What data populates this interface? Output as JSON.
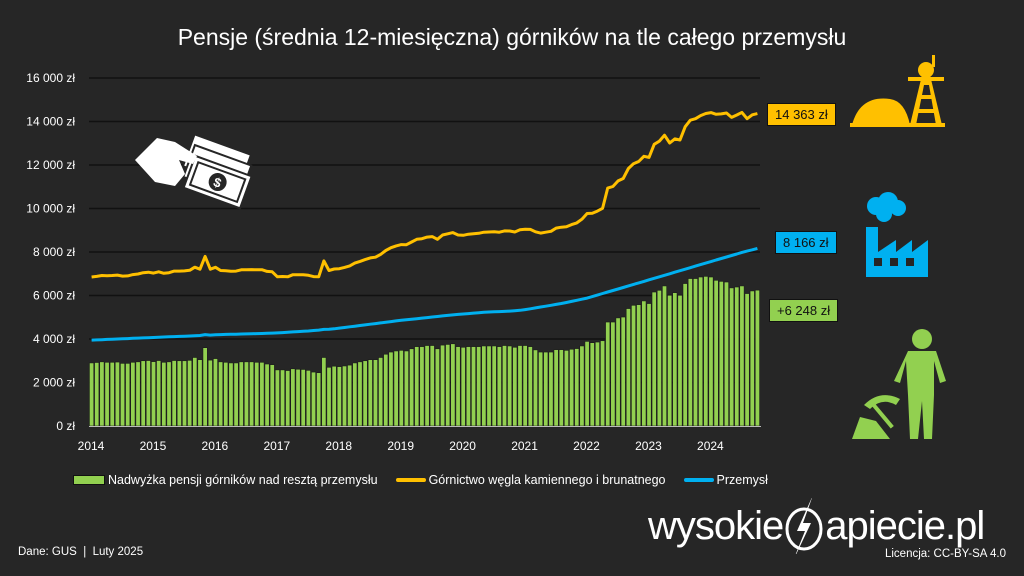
{
  "title": "Pensje (średnia 12-miesięczna) górników na tle całego przemysłu",
  "chart_data": {
    "type": "bar+line",
    "title": "Pensje (średnia 12-miesięczna) górników na tle całego przemysłu",
    "xlabel": "",
    "ylabel": "",
    "x_start": "2014-01",
    "x_end": "2024-10",
    "frequency": "monthly",
    "x_ticks": [
      "2014",
      "2015",
      "2016",
      "2017",
      "2018",
      "2019",
      "2020",
      "2021",
      "2022",
      "2023",
      "2024"
    ],
    "y_ticks": [
      "0 zł",
      "2 000 zł",
      "4 000 zł",
      "6 000 zł",
      "8 000 zł",
      "10 000 zł",
      "12 000 zł",
      "14 000 zł",
      "16 000 zł"
    ],
    "ylim": [
      0,
      16000
    ],
    "grid": "horizontal",
    "legend": "bottom",
    "series": [
      {
        "name": "Nadwyżka pensji górników nad resztą przemysłu",
        "type": "bar",
        "color": "#92D050",
        "values": [
          2900,
          2920,
          2950,
          2930,
          2930,
          2940,
          2880,
          2880,
          2930,
          2950,
          3000,
          3010,
          2960,
          3010,
          2930,
          2950,
          3010,
          3000,
          3000,
          3020,
          3150,
          3050,
          3600,
          3030,
          3100,
          2950,
          2930,
          2900,
          2900,
          2950,
          2950,
          2950,
          2930,
          2930,
          2850,
          2820,
          2580,
          2580,
          2550,
          2630,
          2610,
          2600,
          2560,
          2480,
          2450,
          3150,
          2700,
          2750,
          2730,
          2760,
          2800,
          2900,
          2950,
          3000,
          3050,
          3050,
          3150,
          3300,
          3400,
          3450,
          3480,
          3450,
          3550,
          3650,
          3650,
          3700,
          3700,
          3550,
          3720,
          3750,
          3780,
          3650,
          3620,
          3650,
          3650,
          3650,
          3680,
          3680,
          3680,
          3650,
          3700,
          3680,
          3620,
          3700,
          3700,
          3650,
          3500,
          3400,
          3400,
          3400,
          3510,
          3510,
          3480,
          3530,
          3560,
          3680,
          3890,
          3830,
          3860,
          3920,
          4780,
          4780,
          4970,
          5010,
          5400,
          5550,
          5580,
          5750,
          5630,
          6160,
          6240,
          6440,
          6010,
          6130,
          6010,
          6550,
          6780,
          6780,
          6850,
          6880,
          6850,
          6700,
          6650,
          6620,
          6350,
          6390,
          6440,
          6090,
          6210,
          6248
        ]
      },
      {
        "name": "Górnictwo węgla kamiennego i brunatnego",
        "type": "line",
        "color": "#FFC000",
        "values": [
          6850,
          6880,
          6920,
          6910,
          6920,
          6940,
          6890,
          6900,
          6960,
          6990,
          7050,
          7070,
          7030,
          7090,
          7020,
          7050,
          7120,
          7120,
          7130,
          7160,
          7300,
          7210,
          7800,
          7210,
          7295,
          7150,
          7140,
          7115,
          7120,
          7180,
          7185,
          7190,
          7180,
          7185,
          7110,
          7090,
          6860,
          6875,
          6860,
          6955,
          6950,
          6955,
          6930,
          6870,
          6860,
          7590,
          7150,
          7220,
          7230,
          7290,
          7360,
          7490,
          7570,
          7650,
          7730,
          7760,
          7890,
          8070,
          8200,
          8280,
          8340,
          8335,
          8460,
          8585,
          8610,
          8685,
          8710,
          8585,
          8780,
          8835,
          8890,
          8780,
          8770,
          8820,
          8840,
          8860,
          8910,
          8920,
          8930,
          8910,
          8970,
          8965,
          8920,
          9020,
          9050,
          9040,
          8930,
          8870,
          8910,
          8950,
          9100,
          9140,
          9160,
          9260,
          9340,
          9510,
          9770,
          9780,
          9880,
          10010,
          10940,
          11010,
          11270,
          11380,
          11840,
          12060,
          12160,
          12400,
          12350,
          12950,
          13100,
          13370,
          13010,
          13200,
          13150,
          13760,
          14060,
          14130,
          14270,
          14370,
          14410,
          14330,
          14350,
          14390,
          14190,
          14300,
          14420,
          14130,
          14310,
          14363
        ]
      },
      {
        "name": "Przemysł",
        "type": "line",
        "color": "#00B0F0",
        "values": [
          3950,
          3960,
          3970,
          3980,
          3990,
          4000,
          4010,
          4020,
          4030,
          4040,
          4050,
          4060,
          4070,
          4080,
          4090,
          4100,
          4110,
          4120,
          4130,
          4140,
          4150,
          4160,
          4200,
          4180,
          4195,
          4200,
          4210,
          4215,
          4220,
          4230,
          4235,
          4240,
          4250,
          4255,
          4260,
          4270,
          4280,
          4295,
          4310,
          4325,
          4340,
          4355,
          4370,
          4390,
          4410,
          4440,
          4450,
          4470,
          4500,
          4530,
          4560,
          4590,
          4620,
          4650,
          4680,
          4710,
          4740,
          4770,
          4800,
          4830,
          4860,
          4885,
          4910,
          4935,
          4960,
          4985,
          5010,
          5035,
          5060,
          5085,
          5110,
          5130,
          5150,
          5170,
          5190,
          5210,
          5230,
          5240,
          5250,
          5260,
          5270,
          5285,
          5300,
          5320,
          5350,
          5390,
          5430,
          5470,
          5510,
          5550,
          5590,
          5630,
          5680,
          5730,
          5780,
          5830,
          5880,
          5950,
          6020,
          6090,
          6160,
          6230,
          6300,
          6370,
          6440,
          6510,
          6580,
          6650,
          6720,
          6790,
          6860,
          6930,
          7000,
          7070,
          7140,
          7210,
          7280,
          7350,
          7420,
          7490,
          7560,
          7630,
          7700,
          7770,
          7840,
          7910,
          7980,
          8040,
          8100,
          8166
        ]
      }
    ],
    "annotations": {
      "mining_last": "14 363 zł",
      "industry_last": "8 166 zł",
      "surplus_last": "+6 248 zł"
    }
  },
  "legend": {
    "bars": "Nadwyżka pensji górników nad resztą przemysłu",
    "mining": "Górnictwo węgla kamiennego i brunatnego",
    "industry": "Przemysł"
  },
  "footer": {
    "source": "Dane: GUS  |  Luty 2025",
    "license": "Licencja: CC-BY-SA 4.0",
    "logo_left": "wysokie",
    "logo_right": "apiecie.pl"
  },
  "icons": [
    "money-hand-icon",
    "mine-shaft-icon",
    "factory-icon",
    "miner-icon"
  ]
}
